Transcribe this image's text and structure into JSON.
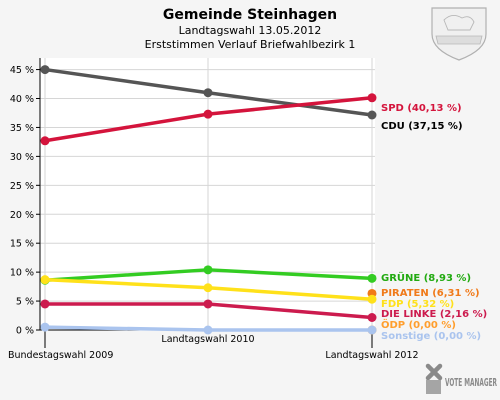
{
  "chart_data": {
    "type": "line",
    "title": "Gemeinde Steinhagen",
    "subtitle": "Landtagswahl 13.05.2012",
    "subtitle2": "Erststimmen Verlauf Briefwahlbezirk 1",
    "categories": [
      "Bundestagswahl 2009",
      "Landtagswahl 2010",
      "Landtagswahl 2012"
    ],
    "ylim": [
      0,
      47
    ],
    "yticks": [
      "0 %",
      "5 %",
      "10 %",
      "15 %",
      "20 %",
      "25 %",
      "30 %",
      "35 %",
      "40 %",
      "45 %"
    ],
    "series": [
      {
        "name": "CDU",
        "end_label": "CDU (37,15 %)",
        "color": "#555555",
        "label_color": "#000000",
        "values": [
          45.0,
          41.0,
          37.15
        ]
      },
      {
        "name": "SPD",
        "end_label": "SPD (40,13 %)",
        "color": "#d4143c",
        "label_color": "#d4143c",
        "values": [
          32.7,
          37.3,
          40.13
        ]
      },
      {
        "name": "GRÜNE",
        "end_label": "GRÜNE (8,93 %)",
        "color": "#33cc22",
        "label_color": "#22aa11",
        "values": [
          8.6,
          10.4,
          8.93
        ]
      },
      {
        "name": "PIRATEN",
        "end_label": "PIRATEN (6,31 %)",
        "color": "#f07a1a",
        "label_color": "#f07a1a",
        "values": [
          null,
          null,
          6.31
        ]
      },
      {
        "name": "FDP",
        "end_label": "FDP (5,32 %)",
        "color": "#ffe11a",
        "label_color": "#ffe11a",
        "values": [
          8.7,
          7.3,
          5.32
        ]
      },
      {
        "name": "DIE LINKE",
        "end_label": "DIE LINKE (2,16 %)",
        "color": "#cc1b4e",
        "label_color": "#cc1b4e",
        "values": [
          4.5,
          4.5,
          2.16
        ]
      },
      {
        "name": "ÖDP",
        "end_label": "ÖDP (0,00 %)",
        "color": "#ff9e2d",
        "label_color": "#ff9e2d",
        "values": [
          null,
          null,
          0.0
        ]
      },
      {
        "name": "Sonstige",
        "end_label": "Sonstige (0,00 %)",
        "color": "#aac4ee",
        "label_color": "#aac4ee",
        "values": [
          0.5,
          0.0,
          0.0
        ]
      }
    ]
  },
  "logo": {
    "text": "VOTE MANAGER"
  }
}
